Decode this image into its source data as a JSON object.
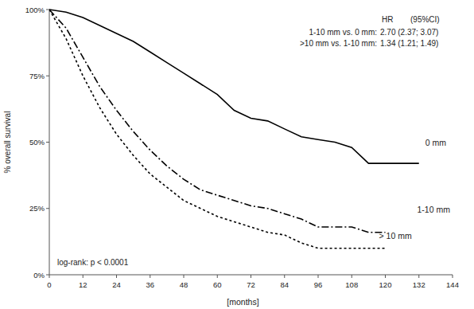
{
  "chart_data": {
    "type": "line",
    "x_label": "[months]",
    "y_label": "% overall survival",
    "x": [
      0,
      6,
      12,
      18,
      24,
      30,
      36,
      42,
      48,
      54,
      60,
      66,
      72,
      78,
      84,
      90,
      96,
      102,
      108,
      114,
      120,
      126,
      132
    ],
    "series": [
      {
        "name": "0 mm",
        "color": "#000000",
        "line_style": "solid",
        "values": [
          100,
          99,
          97,
          94,
          91,
          88,
          84,
          80,
          76,
          72,
          68,
          62,
          59,
          58,
          55,
          52,
          51,
          50,
          48,
          42,
          42,
          42,
          42
        ]
      },
      {
        "name": "1-10 mm",
        "color": "#000000",
        "line_style": "dashdot",
        "values": [
          100,
          93,
          82,
          71,
          62,
          54,
          47,
          41,
          36,
          32,
          30,
          28,
          26,
          25,
          23,
          21,
          18,
          18,
          18,
          16,
          16,
          null,
          null
        ]
      },
      {
        "name": "> 10 mm",
        "color": "#000000",
        "line_style": "dotted",
        "values": [
          100,
          89,
          75,
          63,
          53,
          45,
          38,
          33,
          28,
          25,
          22,
          20,
          18,
          16,
          15,
          12,
          10,
          10,
          10,
          10,
          10,
          null,
          null
        ]
      }
    ],
    "xlim": [
      0,
      144
    ],
    "xticks": [
      0,
      12,
      24,
      36,
      48,
      60,
      72,
      84,
      96,
      108,
      120,
      132,
      144
    ],
    "ylim": [
      0,
      100
    ],
    "yticks": [
      {
        "value": 0,
        "label": "0%"
      },
      {
        "value": 25,
        "label": "25%"
      },
      {
        "value": 50,
        "label": "50%"
      },
      {
        "value": 75,
        "label": "75%"
      },
      {
        "value": 100,
        "label": "100%"
      }
    ],
    "grid": false,
    "annotations": [
      "HR",
      "(95%CI)",
      "1-10 mm vs. 0 mm:",
      "2.70 (2.37; 3.07)",
      ">10 mm vs. 1-10 mm:",
      "1.34 (1.21; 1.49)",
      "log-rank: p < 0.0001"
    ]
  }
}
